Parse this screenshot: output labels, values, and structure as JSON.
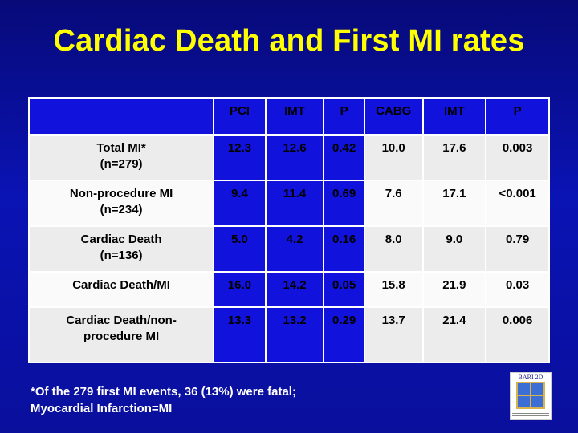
{
  "title": "Cardiac Death and First MI rates",
  "table": {
    "headers": [
      "",
      "PCI",
      "IMT",
      "P",
      "CABG",
      "IMT",
      "P"
    ],
    "rows": [
      {
        "label_line1": "Total MI*",
        "label_line2": "(n=279)",
        "values": [
          "12.3",
          "12.6",
          "0.42",
          "10.0",
          "17.6",
          "0.003"
        ]
      },
      {
        "label_line1": "Non-procedure MI",
        "label_line2": "(n=234)",
        "values": [
          "9.4",
          "11.4",
          "0.69",
          "7.6",
          "17.1",
          "<0.001"
        ]
      },
      {
        "label_line1": "Cardiac Death",
        "label_line2": "(n=136)",
        "values": [
          "5.0",
          "4.2",
          "0.16",
          "8.0",
          "9.0",
          "0.79"
        ]
      },
      {
        "label_line1": "Cardiac Death/MI",
        "label_line2": "",
        "values": [
          "16.0",
          "14.2",
          "0.05",
          "15.8",
          "21.9",
          "0.03"
        ]
      },
      {
        "label_line1": "Cardiac Death/non-",
        "label_line2": "procedure MI",
        "values": [
          "13.3",
          "13.2",
          "0.29",
          "13.7",
          "21.4",
          "0.006"
        ]
      }
    ]
  },
  "footnote": {
    "line1": "*Of the 279 first MI events, 36 (13%) were fatal;",
    "line2": "Myocardial Infarction=MI"
  },
  "logo": {
    "text": "BARI 2D"
  }
}
